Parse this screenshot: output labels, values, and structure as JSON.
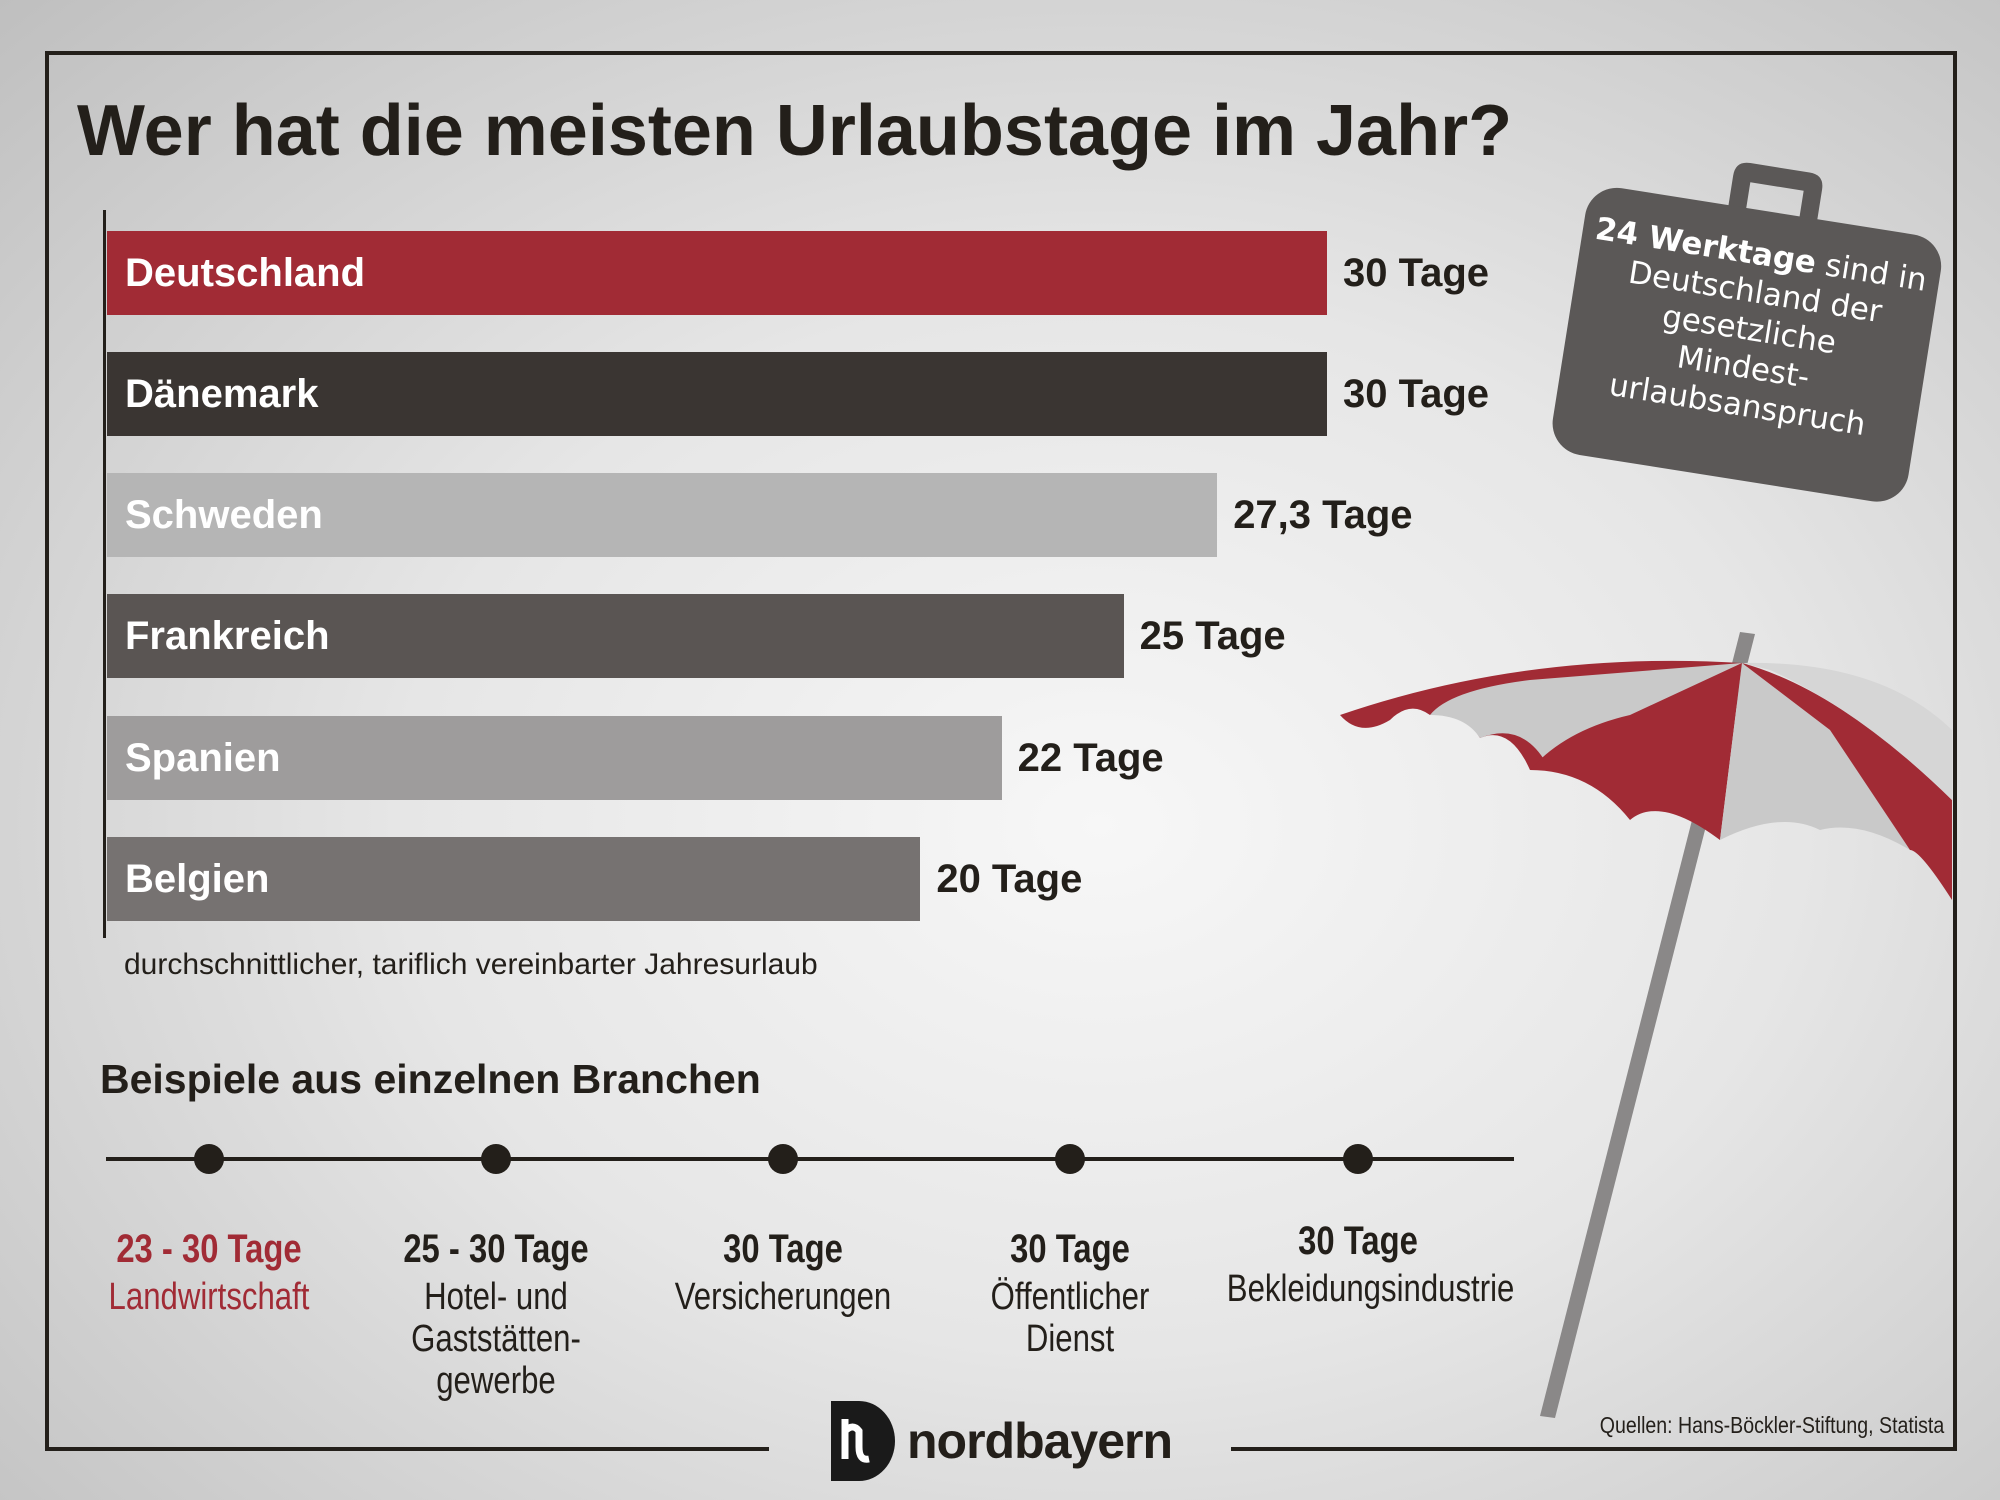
{
  "title": "Wer hat die meisten Urlaubstage im Jahr?",
  "chart_data": {
    "type": "bar",
    "orientation": "horizontal",
    "title": "Wer hat die meisten Urlaubstage im Jahr?",
    "categories": [
      "Deutschland",
      "Dänemark",
      "Schweden",
      "Frankreich",
      "Spanien",
      "Belgien"
    ],
    "values": [
      30,
      30,
      27.3,
      25,
      22,
      20
    ],
    "value_labels": [
      "30 Tage",
      "30 Tage",
      "27,3 Tage",
      "25 Tage",
      "22 Tage",
      "20 Tage"
    ],
    "colors": [
      "#a12b35",
      "#3a3532",
      "#b5b5b5",
      "#5a5553",
      "#9e9c9c",
      "#767271"
    ],
    "xlim": [
      0,
      30
    ],
    "grid": false,
    "note": "durchschnittlicher, tariflich vereinbarter Jahresurlaub"
  },
  "callout": {
    "bold": "24 Werktage",
    "lines": [
      "sind in",
      "Deutschland der",
      "gesetzliche",
      "Mindest-",
      "urlaubsanspruch"
    ],
    "color": "#5b5857"
  },
  "branches": {
    "title": "Beispiele aus einzelnen Branchen",
    "items": [
      {
        "value": "23 - 30 Tage",
        "name": "Landwirtschaft",
        "highlight": true
      },
      {
        "value": "25 - 30 Tage",
        "name": "Hotel- und Gaststätten-gewerbe",
        "lines": [
          "Hotel- und",
          "Gaststätten-",
          "gewerbe"
        ]
      },
      {
        "value": "30 Tage",
        "name": "Versicherungen",
        "lines": [
          "Versicherungen"
        ]
      },
      {
        "value": "30 Tage",
        "name": "Öffentlicher Dienst",
        "lines": [
          "Öffentlicher",
          "Dienst"
        ]
      },
      {
        "value": "30 Tage",
        "name": "Bekleidungsindustrie",
        "lines": [
          "Bekleidungsindustrie"
        ]
      }
    ],
    "highlight_color": "#a12b35"
  },
  "logo": "nordbayern",
  "sources": "Quellen: Hans-Böckler-Stiftung, Statista"
}
